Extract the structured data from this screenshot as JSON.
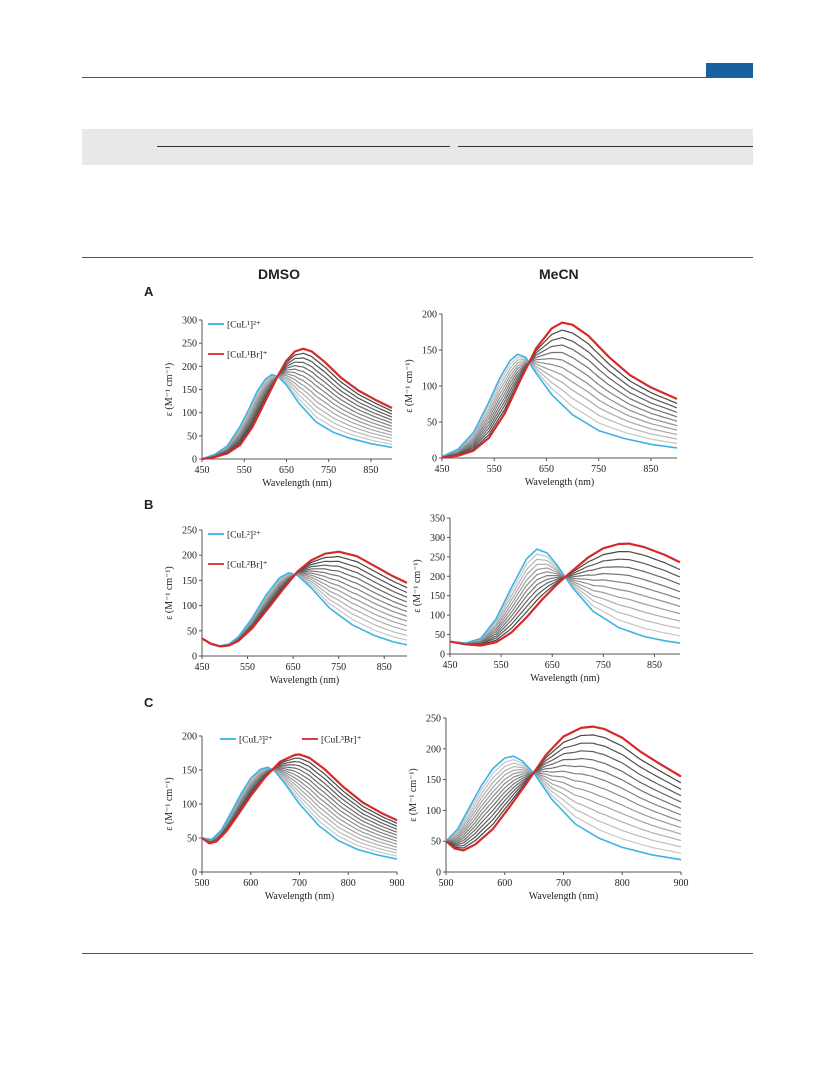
{
  "column_titles": {
    "left": "DMSO",
    "right": "MeCN"
  },
  "panel_letters": [
    "A",
    "B",
    "C"
  ],
  "colors": {
    "start": "#3bb3e6",
    "end": "#d62a2a",
    "grey_light": "#d4d4d4",
    "grey_dark": "#3a3a3a",
    "rule": "#1f5f95"
  },
  "chart_data": [
    {
      "id": "A-DMSO",
      "type": "line",
      "xlabel": "Wavelength (nm)",
      "ylabel": "ε (M⁻¹ cm⁻¹)",
      "xlim": [
        450,
        900
      ],
      "ylim": [
        0,
        300
      ],
      "xticks": [
        450,
        550,
        650,
        750,
        850
      ],
      "yticks": [
        0,
        50,
        100,
        150,
        200,
        250,
        300
      ],
      "legend": [
        {
          "label": "[CuL¹]²⁺",
          "color": "#3bb3e6"
        },
        {
          "label": "[CuL¹Br]⁺",
          "color": "#d62a2a"
        }
      ],
      "legend_layout": "vertical",
      "n_intermediate": 12,
      "series": [
        {
          "label": "[CuL¹]²⁺",
          "color": "#3bb3e6",
          "x": [
            450,
            480,
            510,
            540,
            560,
            580,
            600,
            615,
            630,
            650,
            680,
            720,
            760,
            800,
            850,
            900
          ],
          "y": [
            0,
            10,
            28,
            70,
            105,
            145,
            172,
            182,
            178,
            160,
            120,
            80,
            58,
            45,
            33,
            25
          ]
        },
        {
          "label": "[CuL¹Br]⁺",
          "color": "#d62a2a",
          "x": [
            450,
            480,
            510,
            540,
            570,
            600,
            630,
            650,
            670,
            690,
            710,
            740,
            780,
            820,
            860,
            900
          ],
          "y": [
            0,
            4,
            12,
            30,
            70,
            125,
            180,
            212,
            232,
            238,
            232,
            210,
            175,
            148,
            128,
            110
          ]
        }
      ]
    },
    {
      "id": "A-MeCN",
      "type": "line",
      "xlabel": "Wavelength (nm)",
      "ylabel": "ε (M⁻¹ cm⁻¹)",
      "xlim": [
        450,
        900
      ],
      "ylim": [
        0,
        200
      ],
      "xticks": [
        450,
        550,
        650,
        750,
        850
      ],
      "yticks": [
        0,
        50,
        100,
        150,
        200
      ],
      "legend": [],
      "legend_layout": "none",
      "n_intermediate": 10,
      "series": [
        {
          "label": "",
          "color": "#3bb3e6",
          "x": [
            450,
            480,
            510,
            540,
            560,
            580,
            595,
            610,
            630,
            660,
            700,
            750,
            800,
            850,
            900
          ],
          "y": [
            2,
            12,
            35,
            78,
            110,
            135,
            144,
            140,
            118,
            88,
            60,
            38,
            27,
            19,
            14
          ]
        },
        {
          "label": "",
          "color": "#d62a2a",
          "x": [
            450,
            480,
            510,
            540,
            570,
            600,
            630,
            660,
            680,
            700,
            730,
            770,
            810,
            850,
            900
          ],
          "y": [
            1,
            3,
            10,
            28,
            62,
            108,
            152,
            180,
            188,
            185,
            170,
            140,
            115,
            98,
            82
          ]
        }
      ]
    },
    {
      "id": "B-DMSO",
      "type": "line",
      "xlabel": "Wavelength (nm)",
      "ylabel": "ε (M⁻¹ cm⁻¹)",
      "xlim": [
        450,
        900
      ],
      "ylim": [
        0,
        250
      ],
      "xticks": [
        450,
        550,
        650,
        750,
        850
      ],
      "yticks": [
        0,
        50,
        100,
        150,
        200,
        250
      ],
      "legend": [
        {
          "label": "[CuL²]²⁺",
          "color": "#3bb3e6"
        },
        {
          "label": "[CuL²Br]⁺",
          "color": "#d62a2a"
        }
      ],
      "legend_layout": "vertical",
      "n_intermediate": 12,
      "series": [
        {
          "label": "[CuL²]²⁺",
          "color": "#3bb3e6",
          "x": [
            450,
            470,
            490,
            510,
            530,
            560,
            590,
            620,
            640,
            660,
            690,
            730,
            780,
            830,
            870,
            900
          ],
          "y": [
            35,
            25,
            20,
            24,
            38,
            75,
            120,
            155,
            165,
            160,
            135,
            95,
            62,
            40,
            28,
            22
          ]
        },
        {
          "label": "[CuL²Br]⁺",
          "color": "#d62a2a",
          "x": [
            450,
            470,
            490,
            510,
            530,
            560,
            600,
            630,
            660,
            690,
            720,
            750,
            790,
            830,
            870,
            900
          ],
          "y": [
            35,
            24,
            19,
            21,
            30,
            55,
            100,
            135,
            168,
            190,
            203,
            207,
            198,
            178,
            158,
            145
          ]
        }
      ]
    },
    {
      "id": "B-MeCN",
      "type": "line",
      "xlabel": "Wavelength (nm)",
      "ylabel": "ε (M⁻¹ cm⁻¹)",
      "xlim": [
        450,
        900
      ],
      "ylim": [
        0,
        350
      ],
      "xticks": [
        450,
        550,
        650,
        750,
        850
      ],
      "yticks": [
        0,
        50,
        100,
        150,
        200,
        250,
        300,
        350
      ],
      "legend": [],
      "legend_layout": "none",
      "n_intermediate": 10,
      "series": [
        {
          "label": "",
          "color": "#3bb3e6",
          "x": [
            450,
            480,
            510,
            540,
            570,
            600,
            620,
            640,
            660,
            690,
            730,
            780,
            830,
            870,
            900
          ],
          "y": [
            32,
            28,
            40,
            90,
            170,
            245,
            270,
            260,
            228,
            170,
            110,
            68,
            45,
            34,
            28
          ]
        },
        {
          "label": "",
          "color": "#d62a2a",
          "x": [
            450,
            480,
            510,
            540,
            570,
            600,
            630,
            660,
            690,
            720,
            750,
            780,
            800,
            830,
            870,
            900
          ],
          "y": [
            32,
            25,
            22,
            30,
            55,
            95,
            140,
            180,
            215,
            248,
            272,
            283,
            284,
            275,
            255,
            236
          ]
        }
      ]
    },
    {
      "id": "C-DMSO",
      "type": "line",
      "xlabel": "Wavelength (nm)",
      "ylabel": "ε (M⁻¹ cm⁻¹)",
      "xlim": [
        500,
        900
      ],
      "ylim": [
        0,
        200
      ],
      "xticks": [
        500,
        600,
        700,
        800,
        900
      ],
      "yticks": [
        0,
        50,
        100,
        150,
        200
      ],
      "legend": [
        {
          "label": "[CuL³]²⁺",
          "color": "#3bb3e6"
        },
        {
          "label": "[CuL³Br]⁺",
          "color": "#d62a2a"
        }
      ],
      "legend_layout": "horizontal",
      "n_intermediate": 12,
      "series": [
        {
          "label": "[CuL³]²⁺",
          "color": "#3bb3e6",
          "x": [
            500,
            520,
            540,
            560,
            580,
            600,
            620,
            635,
            650,
            670,
            700,
            740,
            780,
            820,
            860,
            900
          ],
          "y": [
            50,
            48,
            62,
            88,
            115,
            138,
            151,
            154,
            148,
            130,
            100,
            68,
            46,
            33,
            25,
            19
          ]
        },
        {
          "label": "[CuL³Br]⁺",
          "color": "#d62a2a",
          "x": [
            500,
            515,
            530,
            550,
            570,
            600,
            630,
            660,
            690,
            700,
            720,
            750,
            790,
            830,
            870,
            900
          ],
          "y": [
            50,
            42,
            45,
            60,
            80,
            112,
            140,
            162,
            172,
            173,
            168,
            152,
            125,
            102,
            86,
            76
          ]
        }
      ]
    },
    {
      "id": "C-MeCN",
      "type": "line",
      "xlabel": "Wavelength (nm)",
      "ylabel": "ε (M⁻¹ cm⁻¹)",
      "xlim": [
        500,
        900
      ],
      "ylim": [
        0,
        250
      ],
      "xticks": [
        500,
        600,
        700,
        800,
        900
      ],
      "yticks": [
        0,
        50,
        100,
        150,
        200,
        250
      ],
      "legend": [],
      "legend_layout": "none",
      "n_intermediate": 12,
      "series": [
        {
          "label": "",
          "color": "#3bb3e6",
          "x": [
            500,
            520,
            540,
            560,
            580,
            600,
            615,
            630,
            650,
            680,
            720,
            760,
            800,
            850,
            900
          ],
          "y": [
            50,
            70,
            105,
            140,
            168,
            185,
            188,
            180,
            160,
            118,
            78,
            55,
            40,
            28,
            20
          ]
        },
        {
          "label": "",
          "color": "#d62a2a",
          "x": [
            500,
            515,
            530,
            550,
            580,
            610,
            640,
            670,
            700,
            730,
            750,
            770,
            800,
            830,
            860,
            900
          ],
          "y": [
            50,
            38,
            35,
            45,
            70,
            108,
            148,
            190,
            220,
            234,
            236,
            232,
            218,
            196,
            178,
            155
          ]
        }
      ]
    }
  ]
}
